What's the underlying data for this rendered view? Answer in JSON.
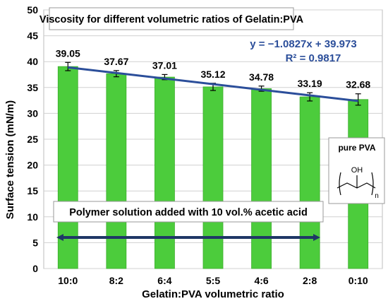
{
  "colors": {
    "bar_fill": "#4ccc3c",
    "bar_edge": "#3cae2c",
    "trend_line": "#2b4e9a",
    "arrow": "#1f3766",
    "equation_text": "#2b4e9a",
    "axis_text": "#000000",
    "grid": "#d0d0d0"
  },
  "chart_data": {
    "type": "bar",
    "title": "Viscosity for different volumetric ratios of Gelatin:PVA",
    "xlabel": "Gelatin:PVA volumetric ratio",
    "ylabel": "Surface tension (mN/m)",
    "categories": [
      "10:0",
      "8:2",
      "6:4",
      "5:5",
      "4:6",
      "2:8",
      "0:10"
    ],
    "values": [
      39.05,
      37.67,
      37.01,
      35.12,
      34.78,
      33.19,
      32.68
    ],
    "value_labels": [
      "39.05",
      "37.67",
      "37.01",
      "35.12",
      "34.78",
      "33.19",
      "32.68"
    ],
    "error_bars": [
      0.8,
      0.6,
      0.5,
      0.7,
      0.5,
      0.8,
      1.1
    ],
    "ylim": [
      0,
      50
    ],
    "yticks": [
      0,
      5,
      10,
      15,
      20,
      25,
      30,
      35,
      40,
      45,
      50
    ],
    "grid": true,
    "trendline": {
      "type": "linear",
      "slope": -1.0827,
      "intercept": 39.973,
      "equation": "y = −1.0827x + 39.973",
      "r_squared": "R² = 0.9817"
    },
    "annotations": {
      "band_label": "Polymer solution added with 10 vol.% acetic acid",
      "pva_label": "pure PVA",
      "pva_oh": "OH",
      "pva_n": "n"
    }
  }
}
